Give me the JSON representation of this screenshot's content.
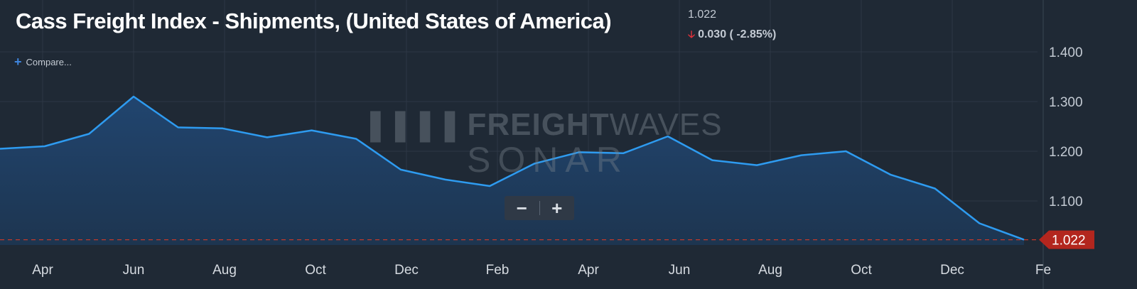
{
  "header": {
    "title": "Cass Freight Index - Shipments, (United States of America)",
    "last_value": "1.022",
    "change_text": "0.030 ( -2.85%)",
    "change_direction": "down"
  },
  "compare_label": "Compare...",
  "watermark": {
    "brand_bold": "FREIGHT",
    "brand_light": "WAVES",
    "product": "SONAR"
  },
  "zoom": {
    "minus_label": "−",
    "plus_label": "+"
  },
  "colors": {
    "background": "#1f2935",
    "line": "#2e9bf0",
    "area_top": "#21456f",
    "area_bottom": "#1d3550",
    "grid": "#2d3845",
    "current_line": "#c0392b",
    "current_badge": "#b3261e"
  },
  "chart_data": {
    "type": "area",
    "title": "Cass Freight Index - Shipments, (United States of America)",
    "series": [
      {
        "values": [
          1.205,
          1.21,
          1.235,
          1.31,
          1.248,
          1.246,
          1.228,
          1.242,
          1.225,
          1.163,
          1.143,
          1.13,
          1.175,
          1.198,
          1.196,
          1.23,
          1.182,
          1.172,
          1.192,
          1.2,
          1.153,
          1.125,
          1.055,
          1.022
        ]
      }
    ],
    "x_tick_labels": [
      "Apr",
      "Jun",
      "Aug",
      "Oct",
      "Dec",
      "Feb",
      "Apr",
      "Jun",
      "Aug",
      "Oct",
      "Dec",
      "Fe"
    ],
    "y_ticks": [
      1.1,
      1.2,
      1.3,
      1.4
    ],
    "y_tick_labels": [
      "1.100",
      "1.200",
      "1.300",
      "1.400"
    ],
    "ylim": [
      1.0,
      1.5
    ],
    "current_value": 1.022,
    "current_value_label": "1.022",
    "grid": true,
    "legend": "none"
  }
}
